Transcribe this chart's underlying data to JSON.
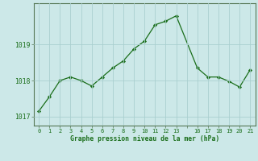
{
  "x": [
    0,
    1,
    2,
    3,
    4,
    5,
    6,
    7,
    8,
    9,
    10,
    11,
    12,
    13,
    16,
    17,
    18,
    19,
    20,
    21
  ],
  "y": [
    1017.15,
    1017.55,
    1018.0,
    1018.1,
    1018.0,
    1017.85,
    1018.1,
    1018.35,
    1018.55,
    1018.88,
    1019.1,
    1019.55,
    1019.65,
    1019.8,
    1018.35,
    1018.1,
    1018.1,
    1017.98,
    1017.82,
    1018.3
  ],
  "line_color": "#1a6e1a",
  "marker_color": "#1a6e1a",
  "bg_color": "#cce8e8",
  "grid_color": "#aacfcf",
  "title": "Graphe pression niveau de la mer (hPa)",
  "title_color": "#1a6e1a",
  "yticks": [
    1017,
    1018,
    1019
  ],
  "xtick_labels": [
    "0",
    "1",
    "2",
    "3",
    "4",
    "5",
    "6",
    "7",
    "8",
    "9",
    "10",
    "11",
    "12",
    "13",
    "",
    "16",
    "17",
    "18",
    "19",
    "20",
    "21"
  ],
  "ylim": [
    1016.75,
    1020.15
  ],
  "x_positions": [
    0,
    1,
    2,
    3,
    4,
    5,
    6,
    7,
    8,
    9,
    10,
    11,
    12,
    13,
    14,
    15,
    16,
    17,
    18,
    19,
    20
  ]
}
